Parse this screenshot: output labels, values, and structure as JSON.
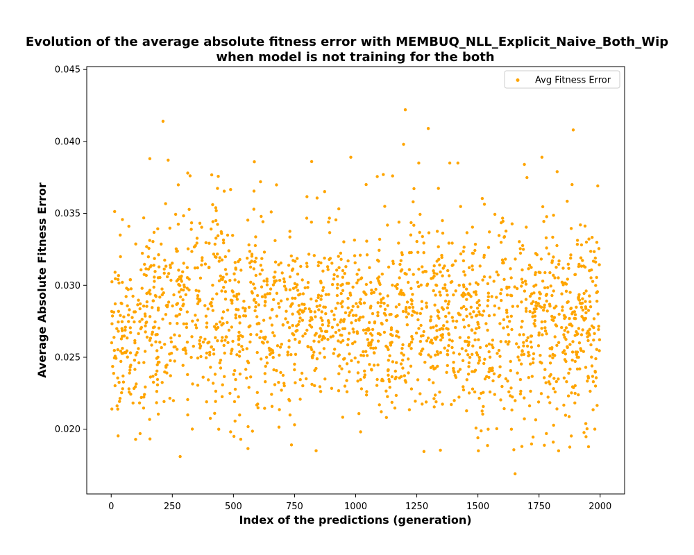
{
  "chart_data": {
    "type": "scatter",
    "title_line1": "Evolution of the average absolute fitness error with MEMBUQ_NLL_Explicit_Naive_Both_Wip",
    "title_line2": "when model is not training for the both",
    "xlabel": "Index of the predictions (generation)",
    "ylabel": "Average Absolute Fitness Error",
    "xlim": [
      -100,
      2100
    ],
    "ylim": [
      0.0155,
      0.0452
    ],
    "xticks": [
      0,
      250,
      500,
      750,
      1000,
      1250,
      1500,
      1750,
      2000
    ],
    "xtick_labels": [
      "0",
      "250",
      "500",
      "750",
      "1000",
      "1250",
      "1500",
      "1750",
      "2000"
    ],
    "yticks": [
      0.02,
      0.025,
      0.03,
      0.035,
      0.04,
      0.045
    ],
    "ytick_labels": [
      "0.020",
      "0.025",
      "0.030",
      "0.035",
      "0.040",
      "0.045"
    ],
    "grid": false,
    "legend_position": "top-right",
    "series": [
      {
        "name": "Avg Fitness Error",
        "color": "#ffa500",
        "n_points": 2000,
        "x_range": [
          0,
          1999
        ],
        "mean": 0.0278,
        "std": 0.0035,
        "min": 0.0169,
        "max": 0.0422,
        "notable_points": [
          {
            "x": 212,
            "y": 0.0414
          },
          {
            "x": 1203,
            "y": 0.0422
          },
          {
            "x": 1297,
            "y": 0.0409
          },
          {
            "x": 1890,
            "y": 0.0408
          },
          {
            "x": 1196,
            "y": 0.0398
          },
          {
            "x": 980,
            "y": 0.0389
          },
          {
            "x": 1762,
            "y": 0.0389
          },
          {
            "x": 158,
            "y": 0.0388
          },
          {
            "x": 233,
            "y": 0.0387
          },
          {
            "x": 1258,
            "y": 0.0385
          },
          {
            "x": 1385,
            "y": 0.0385
          },
          {
            "x": 1418,
            "y": 0.0385
          },
          {
            "x": 1690,
            "y": 0.0384
          },
          {
            "x": 820,
            "y": 0.0386
          },
          {
            "x": 1824,
            "y": 0.0379
          },
          {
            "x": 313,
            "y": 0.0378
          },
          {
            "x": 1113,
            "y": 0.0377
          },
          {
            "x": 1151,
            "y": 0.0376
          },
          {
            "x": 1043,
            "y": 0.037
          },
          {
            "x": 1885,
            "y": 0.037
          },
          {
            "x": 282,
            "y": 0.0181
          },
          {
            "x": 1502,
            "y": 0.0185
          },
          {
            "x": 1830,
            "y": 0.0185
          },
          {
            "x": 1652,
            "y": 0.0169
          },
          {
            "x": 1680,
            "y": 0.0188
          },
          {
            "x": 1500,
            "y": 0.0194
          },
          {
            "x": 502,
            "y": 0.0195
          },
          {
            "x": 530,
            "y": 0.0193
          },
          {
            "x": 1780,
            "y": 0.0197
          },
          {
            "x": 1637,
            "y": 0.02
          },
          {
            "x": 440,
            "y": 0.02
          },
          {
            "x": 1542,
            "y": 0.02
          }
        ]
      }
    ]
  }
}
